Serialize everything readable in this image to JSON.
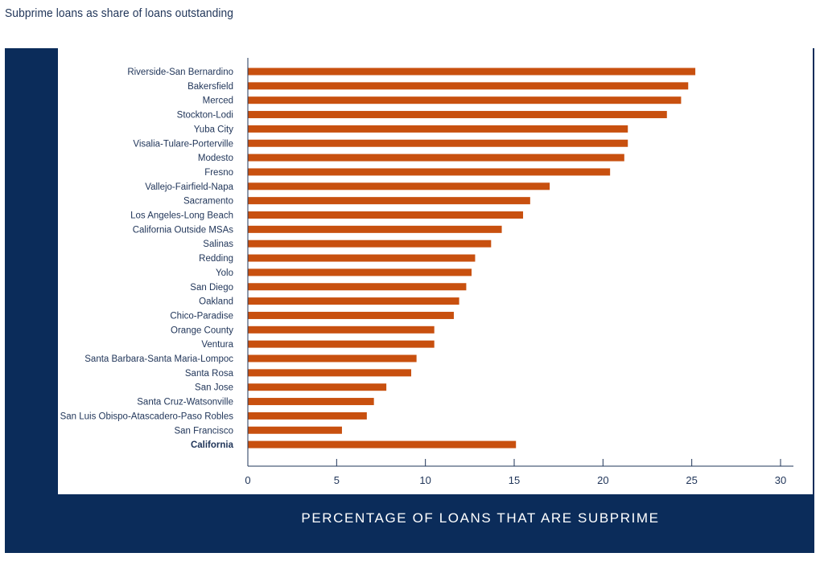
{
  "page": {
    "title": "Subprime loans as share of loans outstanding"
  },
  "colors": {
    "bar": "#c8500f",
    "frame": "#0b2c5a",
    "axis": "#1f3458"
  },
  "chart_data": {
    "type": "bar",
    "orientation": "horizontal",
    "title": "",
    "xlabel": "PERCENTAGE OF LOANS THAT ARE SUBPRIME",
    "ylabel": "",
    "xlim": [
      0,
      30
    ],
    "xticks": [
      0,
      5,
      10,
      15,
      20,
      25,
      30
    ],
    "grid": false,
    "categories": [
      "Riverside-San Bernardino",
      "Bakersfield",
      "Merced",
      "Stockton-Lodi",
      "Yuba City",
      "Visalia-Tulare-Porterville",
      "Modesto",
      "Fresno",
      "Vallejo-Fairfield-Napa",
      "Sacramento",
      "Los Angeles-Long Beach",
      "California Outside MSAs",
      "Salinas",
      "Redding",
      "Yolo",
      "San Diego",
      "Oakland",
      "Chico-Paradise",
      "Orange County",
      "Ventura",
      "Santa Barbara-Santa Maria-Lompoc",
      "Santa Rosa",
      "San Jose",
      "Santa Cruz-Watsonville",
      "San Luis Obispo-Atascadero-Paso Robles",
      "San Francisco",
      "California"
    ],
    "values": [
      25.2,
      24.8,
      24.4,
      23.6,
      21.4,
      21.4,
      21.2,
      20.4,
      17.0,
      15.9,
      15.5,
      14.3,
      13.7,
      12.8,
      12.6,
      12.3,
      11.9,
      11.6,
      10.5,
      10.5,
      9.5,
      9.2,
      7.8,
      7.1,
      6.7,
      5.3,
      15.1
    ],
    "highlight": [
      "California"
    ]
  }
}
